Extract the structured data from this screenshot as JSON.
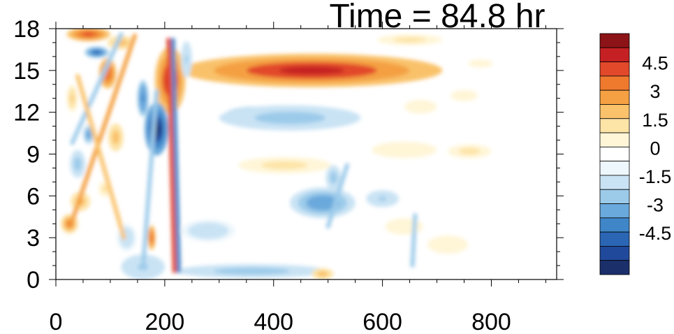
{
  "chart_data": {
    "type": "heatmap",
    "title": "Time = 84.8 hr",
    "xlabel": "",
    "ylabel": "",
    "xlim": [
      0,
      920
    ],
    "ylim": [
      0,
      18
    ],
    "x_ticks": [
      "0",
      "200",
      "400",
      "600",
      "800"
    ],
    "y_ticks": [
      "0",
      "3",
      "6",
      "9",
      "12",
      "15",
      "18"
    ],
    "colorbar": {
      "levels": [
        -5.25,
        -4.5,
        -3.75,
        -3,
        -2.25,
        -1.5,
        -0.75,
        0,
        0.75,
        1.5,
        2.25,
        3,
        3.75,
        4.5,
        5.25
      ],
      "labels": [
        "4.5",
        "3",
        "1.5",
        "0",
        "-1.5",
        "-3",
        "-4.5"
      ],
      "colors": [
        "#1b2f6b",
        "#21499b",
        "#2b66b5",
        "#3f86c9",
        "#6aa9dc",
        "#9ccbea",
        "#c9e3f4",
        "#eef7fc",
        "#ffffff",
        "#fff6d8",
        "#fde4a7",
        "#f9c26b",
        "#f4a043",
        "#ef7a2e",
        "#e2492a",
        "#c52023",
        "#8c1317"
      ]
    },
    "features": [
      {
        "x": 470,
        "y": 15.0,
        "rx": 240,
        "ry": 1.2,
        "value": 5.5
      },
      {
        "x": 210,
        "y": 14.3,
        "rx": 28,
        "ry": 2.4,
        "value": 5.5
      },
      {
        "x": 60,
        "y": 17.6,
        "rx": 40,
        "ry": 0.5,
        "value": 5.0
      },
      {
        "x": 120,
        "y": 17.0,
        "rx": 25,
        "ry": 0.5,
        "value": 3.0
      },
      {
        "x": 95,
        "y": 14.8,
        "rx": 16,
        "ry": 1.1,
        "value": 4.5
      },
      {
        "x": 75,
        "y": 16.3,
        "rx": 22,
        "ry": 0.4,
        "value": -4.0
      },
      {
        "x": 185,
        "y": 10.8,
        "rx": 22,
        "ry": 1.9,
        "value": -5.5
      },
      {
        "x": 370,
        "y": 11.8,
        "rx": 60,
        "ry": 0.6,
        "value": -4.0
      },
      {
        "x": 430,
        "y": 11.6,
        "rx": 130,
        "ry": 0.9,
        "value": -1.8
      },
      {
        "x": 670,
        "y": 12.4,
        "rx": 30,
        "ry": 0.5,
        "value": 1.5
      },
      {
        "x": 750,
        "y": 13.2,
        "rx": 25,
        "ry": 0.4,
        "value": 1.5
      },
      {
        "x": 420,
        "y": 8.2,
        "rx": 85,
        "ry": 0.6,
        "value": 2.2
      },
      {
        "x": 640,
        "y": 9.3,
        "rx": 80,
        "ry": 0.8,
        "value": 1.4
      },
      {
        "x": 760,
        "y": 9.2,
        "rx": 40,
        "ry": 0.5,
        "value": 1.8
      },
      {
        "x": 490,
        "y": 5.5,
        "rx": 60,
        "ry": 1.1,
        "value": -2.8
      },
      {
        "x": 510,
        "y": 7.3,
        "rx": 14,
        "ry": 0.9,
        "value": -2.0
      },
      {
        "x": 600,
        "y": 5.8,
        "rx": 30,
        "ry": 0.6,
        "value": -1.5
      },
      {
        "x": 160,
        "y": 0.9,
        "rx": 40,
        "ry": 0.9,
        "value": -1.5
      },
      {
        "x": 360,
        "y": 0.6,
        "rx": 140,
        "ry": 0.5,
        "value": -2.2
      },
      {
        "x": 280,
        "y": 3.5,
        "rx": 50,
        "ry": 0.8,
        "value": -1.4
      },
      {
        "x": 490,
        "y": 0.4,
        "rx": 20,
        "ry": 0.4,
        "value": 3.0
      },
      {
        "x": 640,
        "y": 3.8,
        "rx": 35,
        "ry": 0.6,
        "value": 1.5
      },
      {
        "x": 720,
        "y": 2.5,
        "rx": 50,
        "ry": 0.9,
        "value": 1.2
      },
      {
        "x": 25,
        "y": 4.0,
        "rx": 16,
        "ry": 0.7,
        "value": 4.0
      },
      {
        "x": 45,
        "y": 5.6,
        "rx": 18,
        "ry": 0.7,
        "value": 3.2
      },
      {
        "x": 90,
        "y": 6.5,
        "rx": 12,
        "ry": 0.6,
        "value": 2.0
      },
      {
        "x": 110,
        "y": 10.2,
        "rx": 14,
        "ry": 1.0,
        "value": 3.0
      },
      {
        "x": 60,
        "y": 10.4,
        "rx": 10,
        "ry": 0.7,
        "value": -2.8
      },
      {
        "x": 40,
        "y": 8.3,
        "rx": 14,
        "ry": 1.0,
        "value": -2.0
      },
      {
        "x": 130,
        "y": 3.0,
        "rx": 18,
        "ry": 1.0,
        "value": -1.4
      },
      {
        "x": 176,
        "y": 3.0,
        "rx": 7,
        "ry": 0.9,
        "value": 4.5
      },
      {
        "x": 160,
        "y": 13.0,
        "rx": 10,
        "ry": 1.3,
        "value": -3.5
      },
      {
        "x": 240,
        "y": 15.8,
        "rx": 10,
        "ry": 1.3,
        "value": -1.5
      },
      {
        "x": 650,
        "y": 17.2,
        "rx": 60,
        "ry": 0.4,
        "value": 1.8
      },
      {
        "x": 780,
        "y": 15.5,
        "rx": 30,
        "ry": 0.4,
        "value": 1.2
      },
      {
        "x": 30,
        "y": 13.0,
        "rx": 10,
        "ry": 1.0,
        "value": 2.4
      }
    ],
    "streaks": [
      {
        "x0": 218,
        "y0": 0.6,
        "x1": 207,
        "y1": 17.2,
        "value": 5.0
      },
      {
        "x0": 226,
        "y0": 0.6,
        "x1": 215,
        "y1": 17.2,
        "value": -3.5
      },
      {
        "x0": 145,
        "y0": 17.5,
        "x1": 30,
        "y1": 4.2,
        "value": 3.2
      },
      {
        "x0": 120,
        "y0": 17.6,
        "x1": 30,
        "y1": 9.8,
        "value": -2.2
      },
      {
        "x0": 40,
        "y0": 14.6,
        "x1": 125,
        "y1": 3.0,
        "value": 2.6
      },
      {
        "x0": 185,
        "y0": 13.5,
        "x1": 160,
        "y1": 0.8,
        "value": -1.8
      },
      {
        "x0": 660,
        "y0": 4.6,
        "x1": 655,
        "y1": 1.0,
        "value": -1.8
      },
      {
        "x0": 535,
        "y0": 8.2,
        "x1": 500,
        "y1": 3.8,
        "value": -2.2
      }
    ]
  }
}
